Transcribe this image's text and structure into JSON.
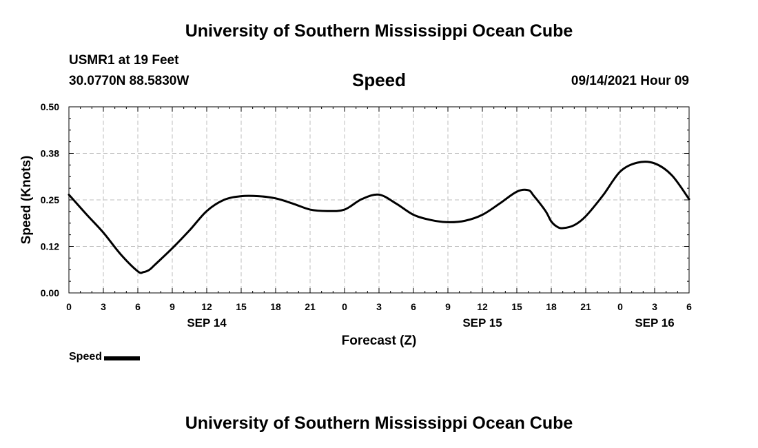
{
  "header": {
    "title": "University of Southern Mississippi Ocean Cube",
    "station": "USMR1 at 19 Feet",
    "coords": "30.0770N  88.5830W",
    "subtitle": "Speed",
    "datetime": "09/14/2021 Hour 09"
  },
  "footer": {
    "title": "University of Southern Mississippi Ocean Cube"
  },
  "legend": {
    "label": "Speed"
  },
  "chart_data": {
    "type": "line",
    "title": "Speed",
    "xlabel": "Forecast (Z)",
    "ylabel": "Speed (Knots)",
    "ylim": [
      0,
      0.5
    ],
    "xlim": [
      0,
      54
    ],
    "grid": true,
    "x_ticks": [
      0,
      3,
      6,
      9,
      12,
      15,
      18,
      21,
      24,
      27,
      30,
      33,
      36,
      39,
      42,
      45,
      48,
      51,
      54
    ],
    "x_tick_labels": [
      "0",
      "3",
      "6",
      "9",
      "12",
      "15",
      "18",
      "21",
      "0",
      "3",
      "6",
      "9",
      "12",
      "15",
      "18",
      "21",
      "0",
      "3",
      "6"
    ],
    "y_ticks": [
      0,
      0.125,
      0.25,
      0.375,
      0.5
    ],
    "y_tick_labels": [
      "0.00",
      "0.12",
      "0.25",
      "0.38",
      "0.50"
    ],
    "date_labels": [
      {
        "x": 12,
        "label": "SEP 14"
      },
      {
        "x": 36,
        "label": "SEP 15"
      },
      {
        "x": 51,
        "label": "SEP 16"
      }
    ],
    "series": [
      {
        "name": "Speed",
        "color": "#000000",
        "x": [
          0,
          1.5,
          3,
          4.5,
          6,
          6.5,
          7,
          7.5,
          9,
          10.5,
          12,
          13.5,
          15,
          16.5,
          18,
          19.5,
          21,
          22.5,
          24,
          25.5,
          27,
          28.5,
          30,
          31.5,
          33,
          34.5,
          36,
          37.5,
          39,
          40,
          40.5,
          41.5,
          42,
          42.5,
          43,
          44,
          45,
          46.5,
          48,
          49.5,
          51,
          52.5,
          54
        ],
        "values": [
          0.264,
          0.212,
          0.162,
          0.104,
          0.058,
          0.056,
          0.062,
          0.076,
          0.12,
          0.168,
          0.22,
          0.25,
          0.26,
          0.26,
          0.254,
          0.24,
          0.224,
          0.22,
          0.224,
          0.252,
          0.264,
          0.24,
          0.21,
          0.196,
          0.19,
          0.194,
          0.21,
          0.24,
          0.272,
          0.276,
          0.26,
          0.22,
          0.192,
          0.178,
          0.174,
          0.182,
          0.206,
          0.262,
          0.326,
          0.35,
          0.348,
          0.316,
          0.252
        ]
      }
    ]
  }
}
